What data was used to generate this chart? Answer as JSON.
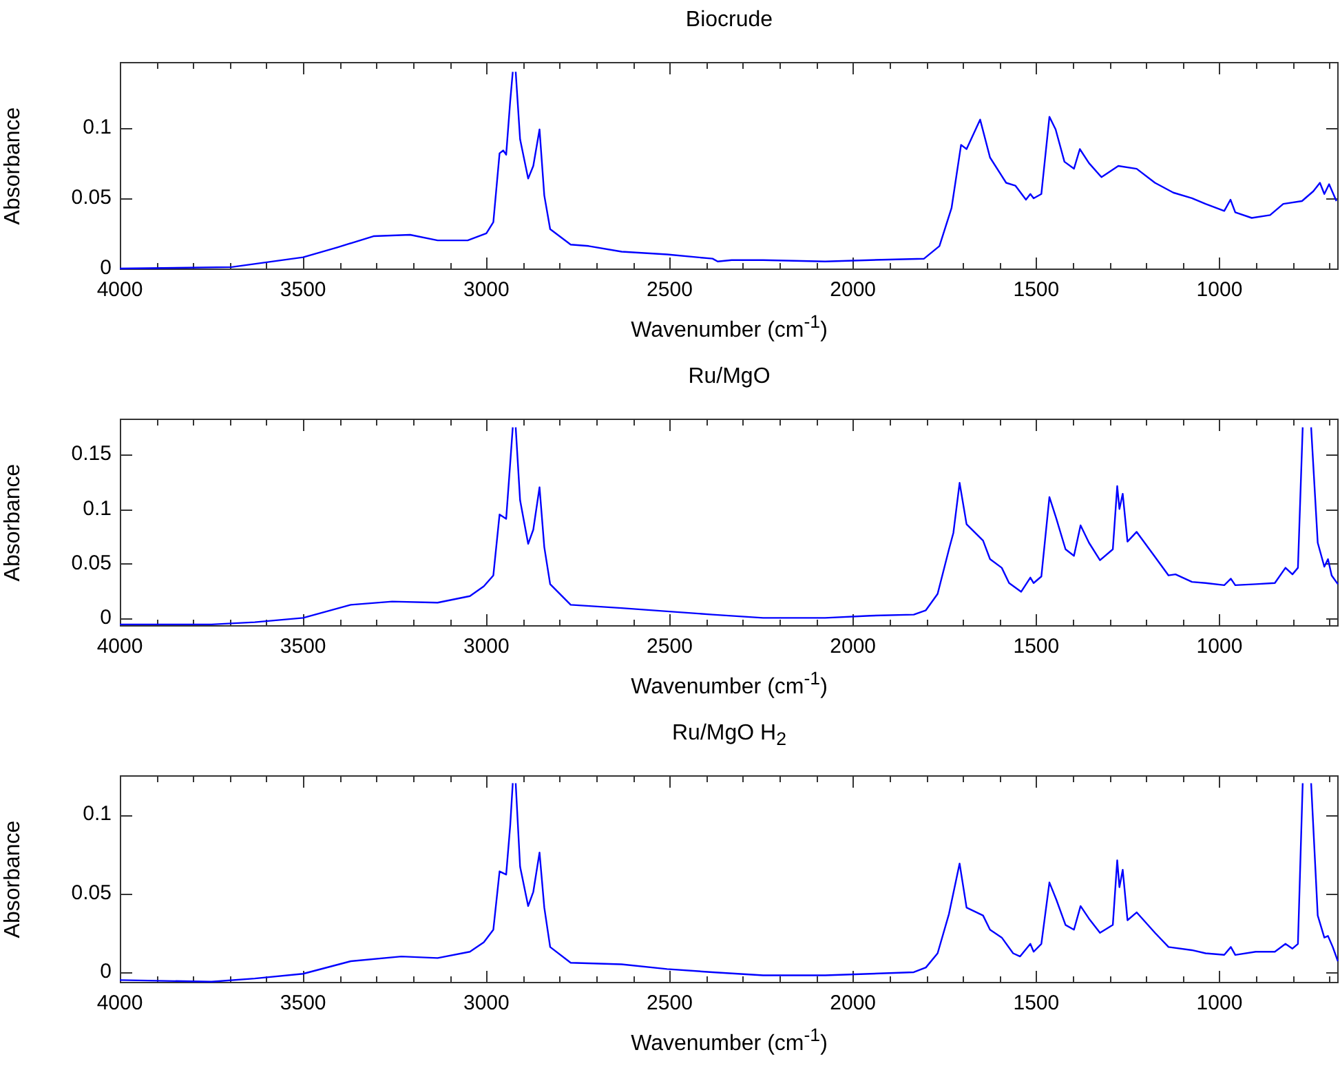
{
  "chart_data": [
    {
      "type": "line",
      "title": "Biocrude",
      "xlabel": "Wavenumber (cm$^{-1}$)",
      "ylabel": "Absorbance",
      "color": "#0000ff",
      "marker": "none",
      "line_style": "solid",
      "grid": false,
      "legend": false,
      "x": [
        4000,
        3695,
        3500,
        3407,
        3308,
        3208,
        3133,
        3051,
        3000,
        2981,
        2964,
        2954,
        2946,
        2935,
        2928,
        2924,
        2920,
        2908,
        2886,
        2872,
        2855,
        2842,
        2826,
        2770,
        2721,
        2631,
        2507,
        2383,
        2369,
        2331,
        2245,
        2076,
        1952,
        1806,
        1764,
        1731,
        1705,
        1690,
        1653,
        1626,
        1582,
        1557,
        1528,
        1516,
        1507,
        1486,
        1464,
        1447,
        1423,
        1397,
        1381,
        1356,
        1322,
        1276,
        1226,
        1176,
        1126,
        1075,
        1038,
        987,
        970,
        957,
        912,
        862,
        826,
        775,
        744,
        726,
        714,
        701,
        681
      ],
      "values": [
        0,
        0.001,
        0.008,
        0.015,
        0.023,
        0.024,
        0.02,
        0.02,
        0.025,
        0.033,
        0.082,
        0.084,
        0.081,
        0.119,
        0.14,
        null,
        0.14,
        0.092,
        0.064,
        0.073,
        0.099,
        0.052,
        0.028,
        0.017,
        0.016,
        0.012,
        0.01,
        0.007,
        0.005,
        0.006,
        0.006,
        0.005,
        0.006,
        0.007,
        0.016,
        0.043,
        0.088,
        0.085,
        0.106,
        0.079,
        0.061,
        0.059,
        0.049,
        0.053,
        0.05,
        0.053,
        0.108,
        0.099,
        0.076,
        0.071,
        0.085,
        0.075,
        0.065,
        0.073,
        0.071,
        0.061,
        0.054,
        0.05,
        0.046,
        0.041,
        0.049,
        0.04,
        0.036,
        0.038,
        0.046,
        0.048,
        0.055,
        0.061,
        0.053,
        0.06,
        0.048
      ],
      "xlim": [
        4000,
        675
      ],
      "ylim": [
        -0.001,
        0.147
      ],
      "yticks": [
        0,
        0.05,
        0.1
      ],
      "xticks": [
        4000,
        {
          "value": 3900,
          "label": null
        },
        {
          "value": 3800,
          "label": null
        },
        {
          "value": 3700,
          "label": null
        },
        {
          "value": 3600,
          "label": null
        },
        3500,
        {
          "value": 3400,
          "label": null
        },
        {
          "value": 3300,
          "label": null
        },
        {
          "value": 3200,
          "label": null
        },
        {
          "value": 3100,
          "label": null
        },
        3000,
        {
          "value": 2900,
          "label": null
        },
        {
          "value": 2800,
          "label": null
        },
        {
          "value": 2700,
          "label": null
        },
        {
          "value": 2600,
          "label": null
        },
        2500,
        {
          "value": 2400,
          "label": null
        },
        {
          "value": 2300,
          "label": null
        },
        {
          "value": 2200,
          "label": null
        },
        {
          "value": 2100,
          "label": null
        },
        2000,
        {
          "value": 1900,
          "label": null
        },
        {
          "value": 1800,
          "label": null
        },
        {
          "value": 1700,
          "label": null
        },
        {
          "value": 1600,
          "label": null
        },
        1500,
        {
          "value": 1400,
          "label": null
        },
        {
          "value": 1300,
          "label": null
        },
        {
          "value": 1200,
          "label": null
        },
        {
          "value": 1100,
          "label": null
        },
        1000,
        {
          "value": 900,
          "label": null
        },
        {
          "value": 800,
          "label": null
        },
        {
          "value": 700,
          "label": null
        }
      ]
    },
    {
      "type": "line",
      "title": "Ru/MgO",
      "xlabel": "Wavenumber (cm$^{-1}$)",
      "ylabel": "Absorbance",
      "color": "#0000ff",
      "marker": "none",
      "line_style": "solid",
      "grid": false,
      "legend": false,
      "x": [
        4000,
        3750,
        3632,
        3500,
        3370,
        3257,
        3133,
        3045,
        3007,
        2981,
        2964,
        2946,
        2935,
        2928,
        2924,
        2920,
        2908,
        2886,
        2872,
        2855,
        2842,
        2826,
        2770,
        2631,
        2507,
        2383,
        2245,
        2076,
        1952,
        1834,
        1801,
        1769,
        1738,
        1726,
        1709,
        1690,
        1645,
        1626,
        1594,
        1574,
        1541,
        1516,
        1507,
        1486,
        1464,
        1445,
        1420,
        1397,
        1379,
        1356,
        1326,
        1291,
        1279,
        1273,
        1264,
        1251,
        1226,
        1176,
        1139,
        1120,
        1075,
        1038,
        987,
        969,
        957,
        901,
        849,
        820,
        801,
        786,
        773,
        762,
        750,
        732,
        714,
        704,
        694,
        677
      ],
      "values": [
        -0.006,
        -0.006,
        -0.004,
        0,
        0.012,
        0.015,
        0.014,
        0.02,
        0.029,
        0.039,
        0.095,
        0.091,
        0.142,
        0.175,
        null,
        0.175,
        0.108,
        0.068,
        0.081,
        0.12,
        0.065,
        0.031,
        0.012,
        0.009,
        0.006,
        0.003,
        0,
        0,
        0.002,
        0.003,
        0.007,
        0.022,
        0.063,
        0.078,
        0.124,
        0.086,
        0.071,
        0.054,
        0.046,
        0.032,
        0.024,
        0.037,
        0.032,
        0.038,
        0.111,
        0.091,
        0.063,
        0.057,
        0.085,
        0.069,
        0.053,
        0.063,
        0.121,
        0.1,
        0.114,
        0.07,
        0.079,
        0.056,
        0.039,
        0.04,
        0.033,
        0.032,
        0.03,
        0.036,
        0.03,
        0.031,
        0.032,
        0.046,
        0.04,
        0.046,
        0.175,
        null,
        0.175,
        0.069,
        0.047,
        0.054,
        0.039,
        0.031
      ],
      "xlim": [
        4000,
        675
      ],
      "ylim": [
        -0.008,
        0.183
      ],
      "yticks": [
        0,
        0.05,
        0.1,
        0.15
      ],
      "xticks": [
        4000,
        {
          "value": 3900,
          "label": null
        },
        {
          "value": 3800,
          "label": null
        },
        {
          "value": 3700,
          "label": null
        },
        {
          "value": 3600,
          "label": null
        },
        3500,
        {
          "value": 3400,
          "label": null
        },
        {
          "value": 3300,
          "label": null
        },
        {
          "value": 3200,
          "label": null
        },
        {
          "value": 3100,
          "label": null
        },
        3000,
        {
          "value": 2900,
          "label": null
        },
        {
          "value": 2800,
          "label": null
        },
        {
          "value": 2700,
          "label": null
        },
        {
          "value": 2600,
          "label": null
        },
        2500,
        {
          "value": 2400,
          "label": null
        },
        {
          "value": 2300,
          "label": null
        },
        {
          "value": 2200,
          "label": null
        },
        {
          "value": 2100,
          "label": null
        },
        2000,
        {
          "value": 1900,
          "label": null
        },
        {
          "value": 1800,
          "label": null
        },
        {
          "value": 1700,
          "label": null
        },
        {
          "value": 1600,
          "label": null
        },
        1500,
        {
          "value": 1400,
          "label": null
        },
        {
          "value": 1300,
          "label": null
        },
        {
          "value": 1200,
          "label": null
        },
        {
          "value": 1100,
          "label": null
        },
        1000,
        {
          "value": 900,
          "label": null
        },
        {
          "value": 800,
          "label": null
        },
        {
          "value": 700,
          "label": null
        }
      ]
    },
    {
      "type": "line",
      "title": "Ru/MgO H$_{2}$",
      "xlabel": "Wavenumber (cm$^{-1}$)",
      "ylabel": "Absorbance",
      "color": "#0000ff",
      "marker": "none",
      "line_style": "solid",
      "grid": false,
      "legend": false,
      "x": [
        4000,
        3750,
        3632,
        3500,
        3370,
        3232,
        3133,
        3045,
        3007,
        2981,
        2964,
        2946,
        2935,
        2928,
        2924,
        2920,
        2908,
        2886,
        2872,
        2855,
        2842,
        2826,
        2770,
        2631,
        2507,
        2383,
        2245,
        2076,
        1952,
        1834,
        1801,
        1769,
        1738,
        1709,
        1690,
        1645,
        1626,
        1594,
        1563,
        1544,
        1516,
        1507,
        1486,
        1464,
        1445,
        1420,
        1397,
        1379,
        1356,
        1326,
        1291,
        1279,
        1273,
        1264,
        1251,
        1226,
        1176,
        1139,
        1075,
        1038,
        987,
        969,
        957,
        901,
        849,
        820,
        801,
        786,
        773,
        762,
        750,
        732,
        714,
        704,
        691,
        677
      ],
      "values": [
        -0.005,
        -0.006,
        -0.004,
        -0.001,
        0.007,
        0.01,
        0.009,
        0.013,
        0.019,
        0.027,
        0.064,
        0.062,
        0.093,
        0.12,
        null,
        0.12,
        0.067,
        0.042,
        0.051,
        0.076,
        0.041,
        0.016,
        0.006,
        0.005,
        0.002,
        0,
        -0.002,
        -0.002,
        -0.001,
        0,
        0.003,
        0.012,
        0.037,
        0.069,
        0.041,
        0.036,
        0.027,
        0.022,
        0.012,
        0.01,
        0.018,
        0.013,
        0.018,
        0.057,
        0.046,
        0.03,
        0.027,
        0.042,
        0.034,
        0.025,
        0.03,
        0.071,
        0.054,
        0.065,
        0.033,
        0.038,
        0.025,
        0.016,
        0.014,
        0.012,
        0.011,
        0.016,
        0.011,
        0.013,
        0.013,
        0.018,
        0.015,
        0.018,
        0.12,
        null,
        0.12,
        0.036,
        0.022,
        0.023,
        0.016,
        0.007
      ],
      "xlim": [
        4000,
        675
      ],
      "ylim": [
        -0.007,
        0.125
      ],
      "yticks": [
        0,
        0.05,
        0.1
      ],
      "xticks": [
        4000,
        {
          "value": 3900,
          "label": null
        },
        {
          "value": 3800,
          "label": null
        },
        {
          "value": 3700,
          "label": null
        },
        {
          "value": 3600,
          "label": null
        },
        3500,
        {
          "value": 3400,
          "label": null
        },
        {
          "value": 3300,
          "label": null
        },
        {
          "value": 3200,
          "label": null
        },
        {
          "value": 3100,
          "label": null
        },
        3000,
        {
          "value": 2900,
          "label": null
        },
        {
          "value": 2800,
          "label": null
        },
        {
          "value": 2700,
          "label": null
        },
        {
          "value": 2600,
          "label": null
        },
        2500,
        {
          "value": 2400,
          "label": null
        },
        {
          "value": 2300,
          "label": null
        },
        {
          "value": 2200,
          "label": null
        },
        {
          "value": 2100,
          "label": null
        },
        2000,
        {
          "value": 1900,
          "label": null
        },
        {
          "value": 1800,
          "label": null
        },
        {
          "value": 1700,
          "label": null
        },
        {
          "value": 1600,
          "label": null
        },
        1500,
        {
          "value": 1400,
          "label": null
        },
        {
          "value": 1300,
          "label": null
        },
        {
          "value": 1200,
          "label": null
        },
        {
          "value": 1100,
          "label": null
        },
        1000,
        {
          "value": 900,
          "label": null
        },
        {
          "value": 800,
          "label": null
        },
        {
          "value": 700,
          "label": null
        }
      ]
    }
  ]
}
